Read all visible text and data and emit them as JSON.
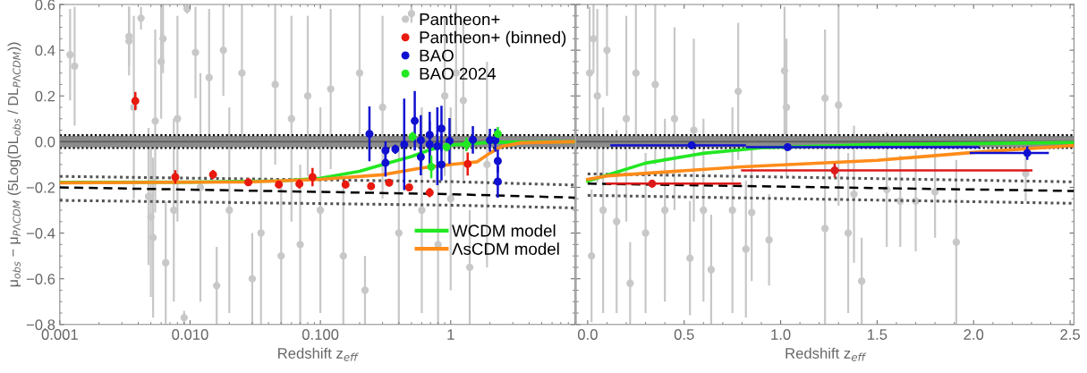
{
  "chart_data": [
    {
      "type": "scatter",
      "xlabel": "Redshift z$_{eff}$",
      "ylabel": "μ$_{obs}$ − μ$_{PΛCDM}$ (5Log(DL$_{obs}$ / DL$_{PΛCDM}$))",
      "log": "x",
      "legend": "top right",
      "xlim": [
        0.001,
        9
      ],
      "xticks": [
        0.001,
        {
          "value": 0.01,
          "label": "0.010"
        },
        {
          "value": 0.1,
          "label": "0.100"
        },
        1
      ],
      "ylim": [
        -0.8,
        0.6
      ],
      "yticks": [
        {
          "value": -0.8,
          "label": "−0.8"
        },
        {
          "value": -0.6,
          "label": "−0.6"
        },
        {
          "value": -0.4,
          "label": "−0.4"
        },
        {
          "value": -0.2,
          "label": "−0.2"
        },
        {
          "value": 0,
          "label": "0.0"
        },
        0.2,
        0.4,
        0.6
      ],
      "bands": [
        {
          "axis": "y",
          "from": -0.025,
          "to": 0.025,
          "color": "#8c8c8c"
        }
      ],
      "ref_lines": [
        {
          "axis": "y",
          "value": 0,
          "color": "#5a5a5a",
          "line_style": "solid"
        },
        {
          "axis": "y",
          "value": 0.028,
          "color": "#000000",
          "line_style": "dotted"
        },
        {
          "axis": "y",
          "value": -0.028,
          "color": "#000000",
          "line_style": "dotted"
        }
      ],
      "series": [
        {
          "name": "Pantheon+",
          "marker": "circle",
          "color": "#c8c8c8",
          "x": [
            0.0012,
            0.0013,
            0.0034,
            0.0034,
            0.0037,
            0.0042,
            0.0048,
            0.005,
            0.0052,
            0.0054,
            0.006,
            0.0062,
            0.0065,
            0.0075,
            0.008,
            0.009,
            0.0095,
            0.011,
            0.012,
            0.014,
            0.016,
            0.018,
            0.02,
            0.025,
            0.03,
            0.035,
            0.045,
            0.05,
            0.06,
            0.07,
            0.08,
            0.1,
            0.12,
            0.15,
            0.2,
            0.22,
            0.3,
            0.4,
            0.5,
            0.6,
            0.8,
            0.9,
            1.0,
            1.1,
            1.25,
            1.4,
            1.9
          ],
          "values": [
            0.38,
            0.33,
            0.46,
            0.44,
            0.15,
            0.54,
            -0.24,
            -0.33,
            -0.42,
            0.09,
            0.35,
            0.45,
            -0.53,
            -0.3,
            0.1,
            -0.77,
            0.58,
            0.39,
            -0.2,
            0.28,
            -0.63,
            0.4,
            -0.3,
            0.3,
            -0.6,
            -0.4,
            0.25,
            -0.5,
            0.1,
            -0.45,
            0.2,
            -0.3,
            0.23,
            -0.5,
            0.3,
            -0.65,
            0.15,
            -0.4,
            0.56,
            -0.3,
            -0.45,
            0.2,
            -0.25,
            0.3,
            0.18,
            -0.55,
            -0.1
          ],
          "errors": [
            0.2,
            0.26,
            0.13,
            0.15,
            0.4,
            0.05,
            0.3,
            0.35,
            0.35,
            0.4,
            0.25,
            0.15,
            0.27,
            0.4,
            0.45,
            0.03,
            0.02,
            0.2,
            0.5,
            0.3,
            0.17,
            0.2,
            0.45,
            0.3,
            0.2,
            0.4,
            0.35,
            0.3,
            0.45,
            0.35,
            0.35,
            0.45,
            0.35,
            0.3,
            0.3,
            0.15,
            0.4,
            0.4,
            0.04,
            0.45,
            0.35,
            0.35,
            0.4,
            0.3,
            0.35,
            0.25,
            0.45
          ]
        },
        {
          "type": "line",
          "color": "#555555",
          "line_style": "dotted",
          "x": [
            0.001,
            1,
            9
          ],
          "values": [
            -0.152,
            -0.175,
            -0.19
          ]
        },
        {
          "type": "line",
          "color": "#000000",
          "line_style": "dashed",
          "x": [
            0.001,
            1,
            9
          ],
          "values": [
            -0.2,
            -0.23,
            -0.245
          ]
        },
        {
          "type": "line",
          "color": "#555555",
          "line_style": "dotted",
          "x": [
            0.001,
            1,
            9
          ],
          "values": [
            -0.257,
            -0.278,
            -0.29
          ]
        },
        {
          "name": "Pantheon+ (binned)",
          "marker": "circle",
          "color": "#e8190e",
          "x": [
            0.0038,
            0.0077,
            0.015,
            0.028,
            0.048,
            0.069,
            0.087,
            0.156,
            0.245,
            0.337,
            0.48,
            0.69,
            1.35
          ],
          "values": [
            0.178,
            -0.155,
            -0.144,
            -0.178,
            -0.188,
            -0.185,
            -0.155,
            -0.188,
            -0.195,
            -0.18,
            -0.2,
            -0.223,
            -0.098
          ],
          "errors": [
            0.04,
            0.03,
            0.02,
            0.01,
            0.01,
            0.02,
            0.04,
            0.01,
            0.01,
            0.01,
            0.01,
            0.02,
            0.05
          ]
        },
        {
          "name": "BAO",
          "marker": "circle",
          "color": "#1010d0",
          "x": [
            0.238,
            0.316,
            0.316,
            0.376,
            0.44,
            0.53,
            0.59,
            0.59,
            0.69,
            0.69,
            0.79,
            0.85,
            0.85,
            0.98,
            1.48,
            2.0,
            2.2,
            2.3,
            2.3
          ],
          "values": [
            0.034,
            -0.039,
            -0.093,
            -0.033,
            -0.012,
            0.091,
            0.006,
            -0.067,
            0.03,
            -0.012,
            -0.02,
            0.057,
            -0.1,
            0.003,
            0.008,
            0.006,
            0.006,
            -0.085,
            -0.175
          ],
          "errors": [
            0.12,
            0.04,
            0.06,
            0.02,
            0.2,
            0.13,
            0.11,
            0.08,
            0.1,
            0.1,
            0.17,
            0.1,
            0.07,
            0.1,
            0.06,
            0.05,
            0.05,
            0.05,
            0.07
          ]
        },
        {
          "name": "BAO 2024",
          "marker": "circle",
          "color": "#22e822",
          "x": [
            0.51,
            0.71,
            0.93,
            1.32,
            2.3
          ],
          "values": [
            0.022,
            -0.11,
            -0.023,
            -0.012,
            0.034
          ],
          "errors": [
            0.02,
            0.05,
            0.02,
            0.03,
            0.03
          ]
        },
        {
          "name": "WCDM model",
          "type": "line",
          "color": "#22e822",
          "line_style": "solid",
          "x": [
            0.001,
            0.01,
            0.05,
            0.1,
            0.2,
            0.3,
            0.5,
            0.7,
            1,
            2,
            9
          ],
          "values": [
            -0.178,
            -0.177,
            -0.172,
            -0.16,
            -0.13,
            -0.1,
            -0.065,
            -0.035,
            -0.015,
            -0.003,
            0.0
          ]
        },
        {
          "name": "ΛsCDM model",
          "type": "line",
          "color": "#ff8c1a",
          "line_style": "solid",
          "x": [
            0.001,
            0.03,
            0.1,
            0.3,
            0.6,
            1,
            1.6,
            2.0,
            2.5,
            3.5,
            9
          ],
          "values": [
            -0.18,
            -0.176,
            -0.165,
            -0.145,
            -0.115,
            -0.1,
            -0.088,
            -0.05,
            -0.02,
            -0.005,
            0.0
          ]
        }
      ]
    },
    {
      "type": "scatter",
      "xlabel": "Redshift z$_{eff}$",
      "tick_labels": "x",
      "xlim": [
        -0.06,
        2.52
      ],
      "xticks": [
        {
          "value": 0,
          "label": "0.0"
        },
        0.5,
        {
          "value": 1,
          "label": "1.0"
        },
        1.5,
        {
          "value": 2,
          "label": "2.0"
        },
        2.5
      ],
      "ylim": [
        -0.8,
        0.6
      ],
      "yticks": [
        {
          "value": -0.8,
          "label": null
        },
        {
          "value": -0.6,
          "label": null
        },
        {
          "value": -0.4,
          "label": null
        },
        {
          "value": -0.2,
          "label": null
        },
        {
          "value": 0,
          "label": null
        },
        {
          "value": 0.2,
          "label": null
        },
        {
          "value": 0.4,
          "label": null
        },
        {
          "value": 0.6,
          "label": null
        }
      ],
      "bands": [
        {
          "axis": "y",
          "from": -0.025,
          "to": 0.025,
          "color": "#8c8c8c"
        }
      ],
      "ref_lines": [
        {
          "axis": "y",
          "value": 0,
          "color": "#5a5a5a",
          "line_style": "solid"
        },
        {
          "axis": "y",
          "value": 0.028,
          "color": "#000000",
          "line_style": "dotted"
        },
        {
          "axis": "y",
          "value": -0.028,
          "color": "#000000",
          "line_style": "dotted"
        }
      ],
      "series": [
        {
          "marker": "circle",
          "color": "#c8c8c8",
          "x": [
            0.01,
            0.02,
            0.03,
            0.05,
            0.08,
            0.1,
            0.15,
            0.2,
            0.22,
            0.25,
            0.3,
            0.35,
            0.4,
            0.45,
            0.53,
            0.55,
            0.6,
            0.64,
            0.75,
            0.78,
            0.82,
            0.85,
            0.94,
            1.02,
            1.03,
            1.23,
            1.23,
            1.3,
            1.35,
            1.38,
            1.42,
            1.55,
            1.62,
            1.7,
            1.8,
            1.91,
            2.27
          ],
          "values": [
            0.3,
            -0.5,
            0.45,
            0.2,
            -0.3,
            0.4,
            -0.35,
            0.1,
            -0.62,
            0.3,
            -0.4,
            0.25,
            -0.3,
            0.1,
            -0.51,
            0.05,
            -0.3,
            -0.56,
            -0.3,
            0.22,
            -0.47,
            -0.31,
            -0.43,
            0.31,
            0.15,
            0.19,
            -0.38,
            0.16,
            -0.4,
            -0.23,
            -0.61,
            -0.21,
            -0.26,
            -0.26,
            -0.22,
            -0.44,
            -0.14
          ],
          "errors": [
            0.29,
            0.29,
            0.15,
            0.38,
            0.45,
            0.2,
            0.4,
            0.45,
            0.18,
            0.3,
            0.35,
            0.35,
            0.4,
            0.4,
            0.25,
            0.4,
            0.4,
            0.24,
            0.45,
            0.3,
            0.3,
            0.3,
            0.2,
            0.28,
            0.3,
            0.3,
            0.42,
            0.44,
            0.35,
            0.3,
            0.19,
            0.25,
            0.2,
            0.22,
            0.2,
            0.36,
            0.12
          ]
        },
        {
          "type": "line",
          "color": "#555555",
          "line_style": "dotted",
          "x": [
            0,
            2.52
          ],
          "values": [
            -0.141,
            -0.176
          ]
        },
        {
          "type": "line",
          "color": "#000000",
          "line_style": "dashed",
          "x": [
            0,
            2.52
          ],
          "values": [
            -0.184,
            -0.216
          ]
        },
        {
          "type": "line",
          "color": "#555555",
          "line_style": "dotted",
          "x": [
            0,
            2.52
          ],
          "values": [
            -0.235,
            -0.27
          ]
        },
        {
          "type": "line",
          "color": "#22e822",
          "line_style": "solid",
          "x": [
            0,
            0.3,
            0.6,
            0.9,
            1.5,
            2.52
          ],
          "values": [
            -0.173,
            -0.094,
            -0.051,
            -0.027,
            -0.012,
            -0.004
          ]
        },
        {
          "type": "line",
          "color": "#ff8c1a",
          "line_style": "solid",
          "x": [
            0,
            0.1,
            0.8,
            1.5,
            2.0,
            2.52
          ],
          "values": [
            -0.165,
            -0.15,
            -0.11,
            -0.082,
            -0.047,
            -0.017
          ]
        },
        {
          "marker": "circle",
          "color": "#dd1a1a",
          "x": [
            0.334,
            1.28
          ],
          "values": [
            -0.184,
            -0.126
          ],
          "errors": [
            0.01,
            0.03
          ],
          "xerrors": [
            [
              0.094,
              0.795
            ],
            [
              0.795,
              2.305
            ]
          ]
        },
        {
          "marker": "circle",
          "color": "#1010d0",
          "x": [
            0.539,
            1.036,
            2.278
          ],
          "values": [
            -0.016,
            -0.024,
            -0.05
          ],
          "errors": [
            0.01,
            0.01,
            0.03
          ],
          "xerrors": [
            [
              0.117,
              0.82
            ],
            [
              0.82,
              2.03
            ],
            [
              1.98,
              2.39
            ]
          ]
        }
      ]
    }
  ]
}
